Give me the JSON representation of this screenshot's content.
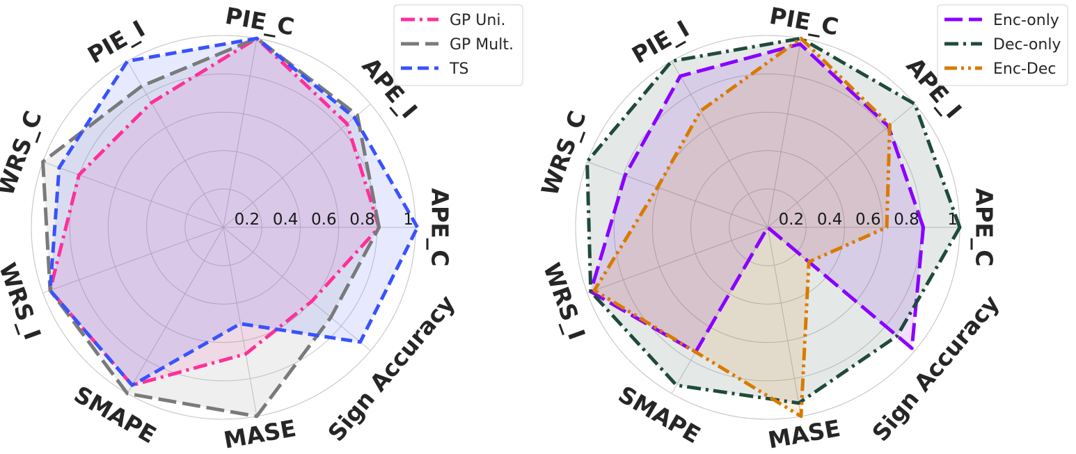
{
  "chart_data": [
    {
      "type": "radar",
      "axes": [
        "APE_C",
        "APE_I",
        "PIE_C",
        "PIE_I",
        "WRS_C",
        "WRS_I",
        "SMAPE",
        "MASE",
        "Sign Accuracy"
      ],
      "rticks": [
        0.2,
        0.4,
        0.6,
        0.8,
        1.0
      ],
      "rtick_labels": [
        "0.2",
        "0.4",
        "0.6",
        "0.8",
        "1"
      ],
      "rlim": [
        0,
        1
      ],
      "grid": true,
      "legend_position": "top-right",
      "series": [
        {
          "name": "GP Uni.",
          "color": "#ff2f9a",
          "line_style": "dash-dot",
          "values": [
            0.81,
            0.84,
            1.0,
            0.75,
            0.8,
            0.96,
            0.95,
            0.67,
            0.6
          ]
        },
        {
          "name": "GP Mult.",
          "color": "#7a7a7a",
          "line_style": "long-dash",
          "values": [
            0.81,
            0.91,
            1.0,
            0.85,
            1.0,
            0.96,
            1.0,
            1.0,
            0.73
          ]
        },
        {
          "name": "TS",
          "color": "#3852ff",
          "line_style": "dashed",
          "values": [
            1.01,
            0.89,
            1.0,
            1.0,
            0.91,
            0.96,
            0.95,
            0.51,
            0.93
          ]
        }
      ]
    },
    {
      "type": "radar",
      "axes": [
        "APE_C",
        "APE_I",
        "PIE_C",
        "PIE_I",
        "WRS_C",
        "WRS_I",
        "SMAPE",
        "MASE",
        "Sign Accuracy"
      ],
      "rticks": [
        0.2,
        0.4,
        0.6,
        0.8,
        1.0
      ],
      "rtick_labels": [
        "0.2",
        "0.4",
        "0.6",
        "0.8",
        "1"
      ],
      "rlim": [
        0,
        1
      ],
      "grid": true,
      "legend_position": "top-right",
      "series": [
        {
          "name": "Enc-only",
          "color": "#8a00ff",
          "line_style": "long-dash",
          "values": [
            0.81,
            0.82,
            0.97,
            0.91,
            0.79,
            0.98,
            0.75,
            0.0,
            0.98
          ]
        },
        {
          "name": "Dec-only",
          "color": "#1f4a3c",
          "line_style": "dash-dot",
          "values": [
            1.0,
            1.0,
            1.0,
            1.0,
            1.0,
            0.98,
            0.95,
            0.93,
            0.88
          ]
        },
        {
          "name": "Enc-Dec",
          "color": "#d97a00",
          "line_style": "dash-dot-dot",
          "values": [
            0.62,
            0.83,
            1.0,
            0.7,
            0.61,
            0.96,
            0.75,
            1.0,
            0.28
          ]
        }
      ]
    }
  ]
}
